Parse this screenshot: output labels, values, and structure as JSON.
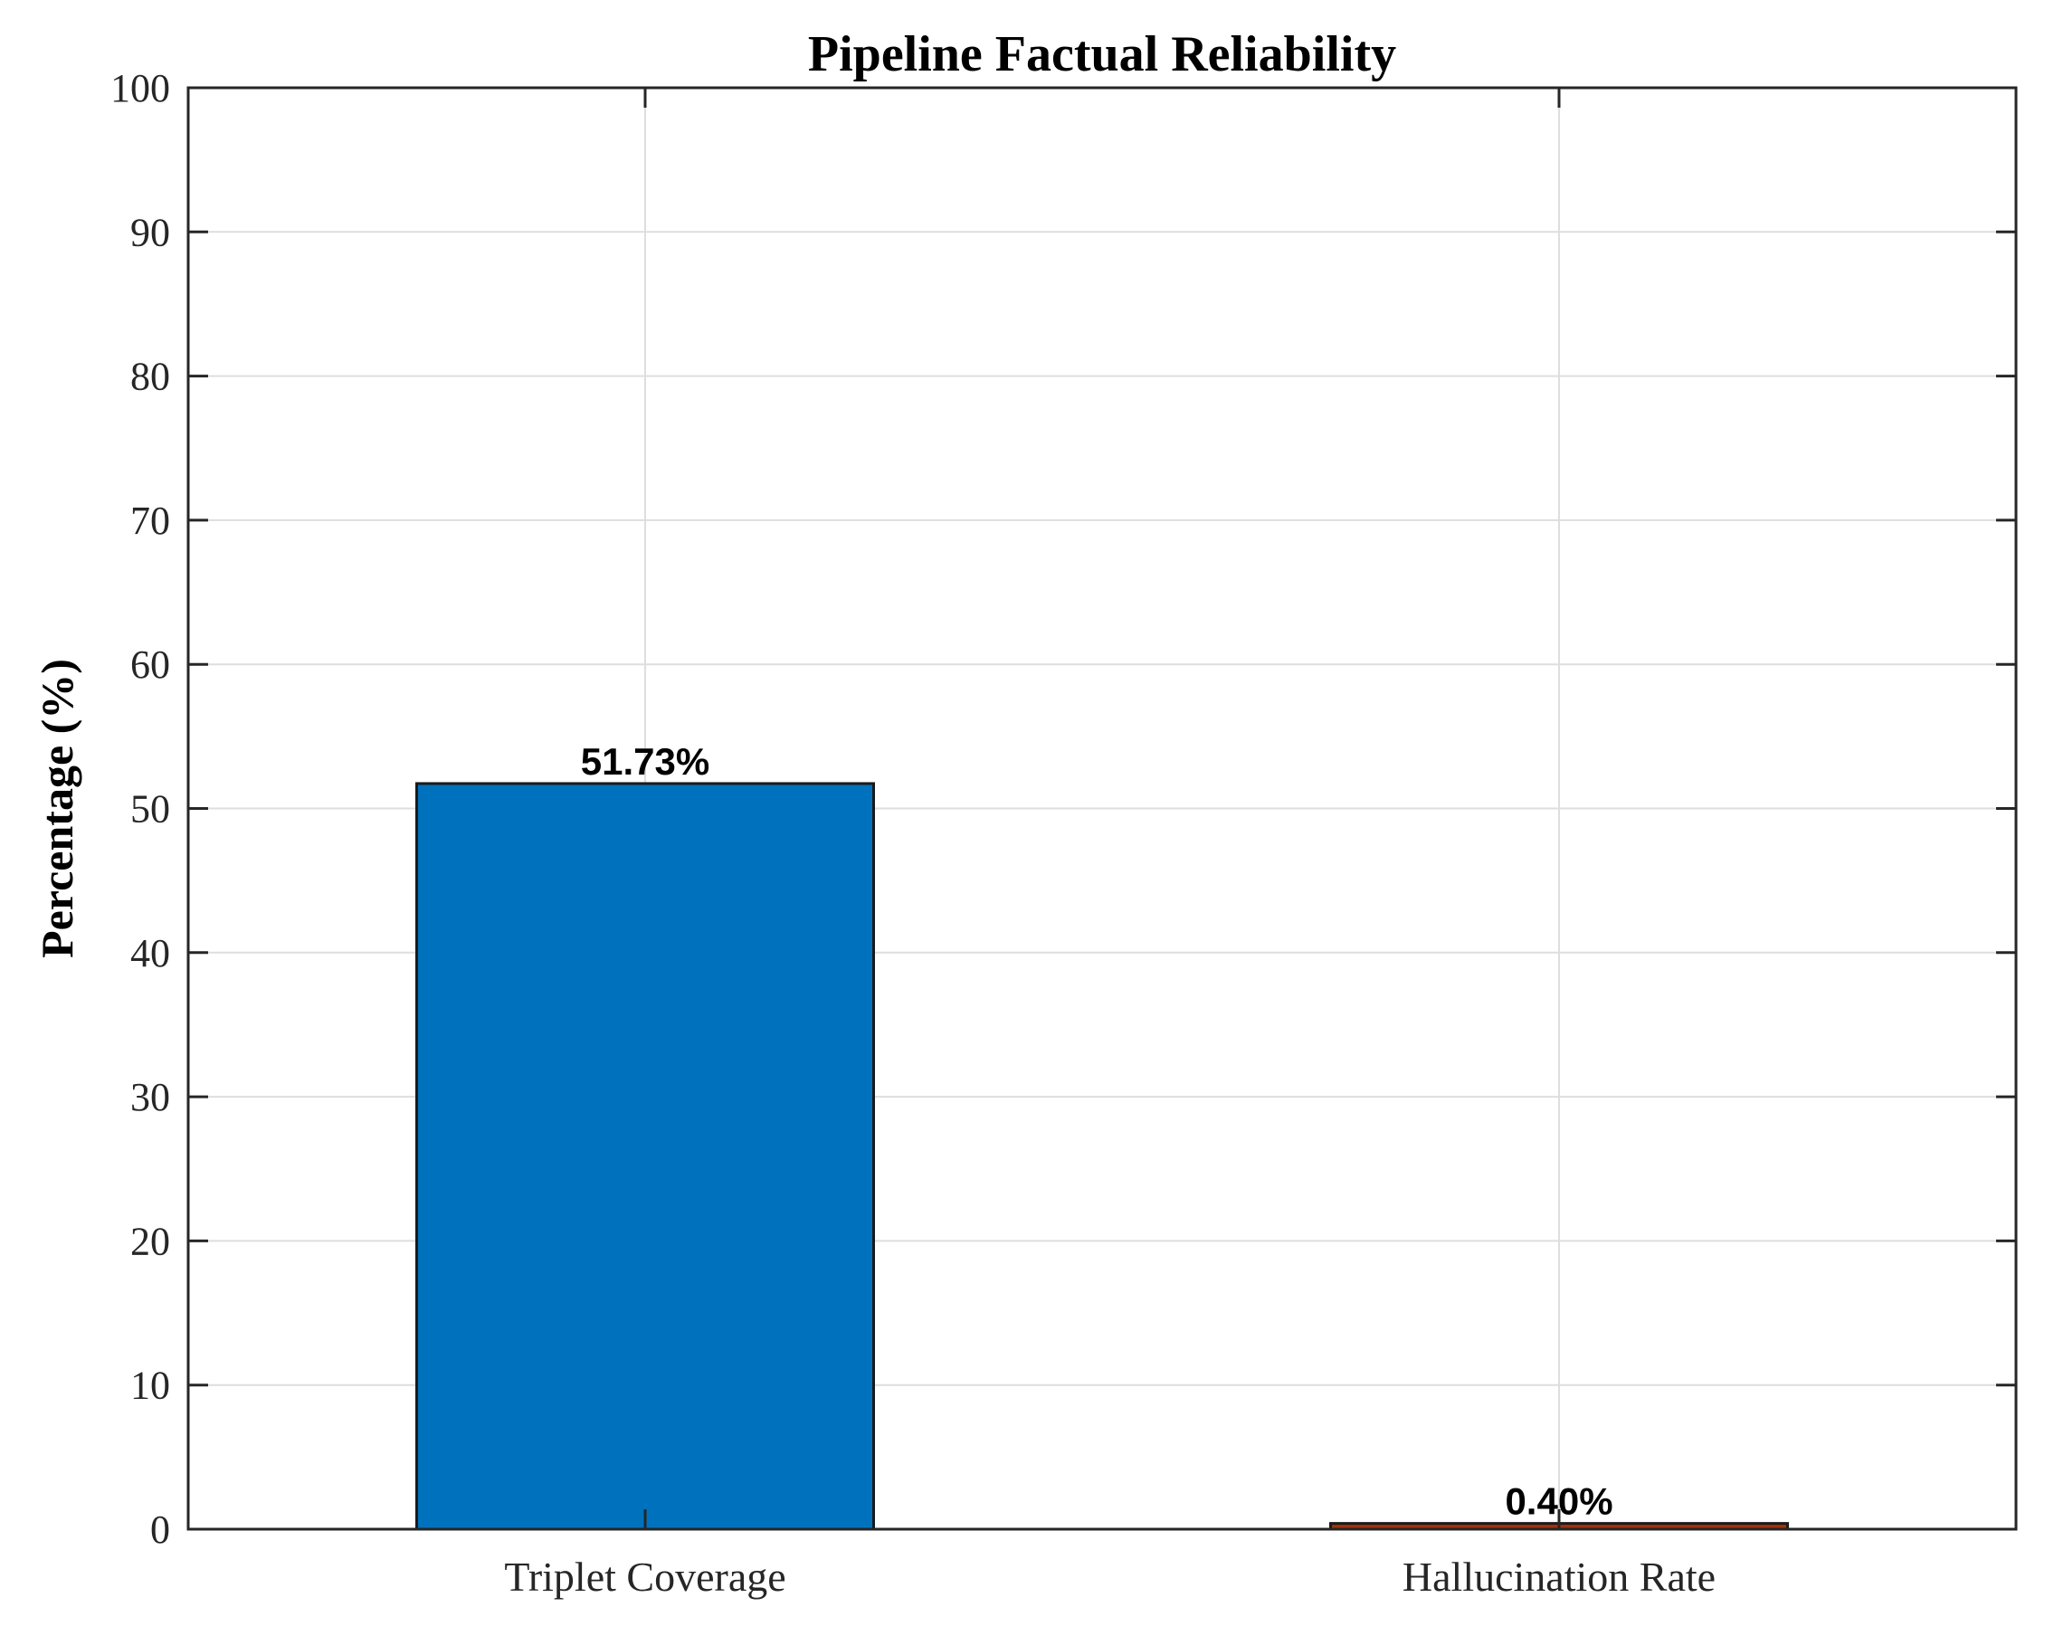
{
  "chart_data": {
    "type": "bar",
    "title": "Pipeline Factual Reliability",
    "xlabel": "",
    "ylabel": "Percentage (%)",
    "ylim": [
      0,
      100
    ],
    "yticks": [
      0,
      10,
      20,
      30,
      40,
      50,
      60,
      70,
      80,
      90,
      100
    ],
    "categories": [
      "Triplet Coverage",
      "Hallucination Rate"
    ],
    "values": [
      51.73,
      0.4
    ],
    "data_labels": [
      "51.73%",
      "0.40%"
    ],
    "colors": [
      "#0072BD",
      "#A2320E"
    ],
    "edge_color": "#1a1a1a",
    "grid": true,
    "legend": "none"
  }
}
